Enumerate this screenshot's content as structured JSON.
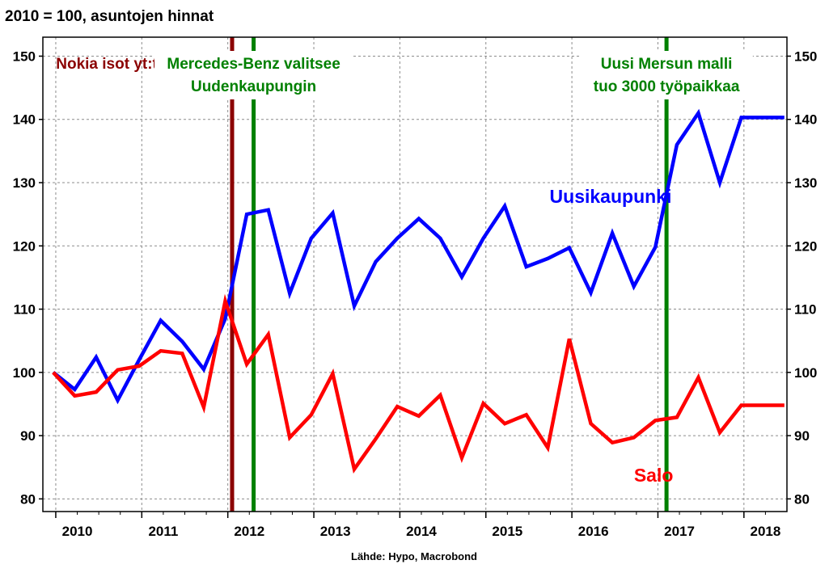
{
  "chart_data": {
    "type": "line",
    "title": "2010 = 100, asuntojen hinnat",
    "source": "Lähde: Hypo, Macrobond",
    "ylim": [
      78,
      153
    ],
    "yticks": [
      80,
      90,
      100,
      110,
      120,
      130,
      140,
      150
    ],
    "xlim": [
      2009.6,
      2018.25
    ],
    "xticks": [
      {
        "label": "2010",
        "x": 2010.0
      },
      {
        "label": "2011",
        "x": 2011.0
      },
      {
        "label": "2012",
        "x": 2012.0
      },
      {
        "label": "2013",
        "x": 2013.0
      },
      {
        "label": "2014",
        "x": 2014.0
      },
      {
        "label": "2015",
        "x": 2015.0
      },
      {
        "label": "2016",
        "x": 2016.0
      },
      {
        "label": "2017",
        "x": 2017.0
      },
      {
        "label": "2018",
        "x": 2018.0
      }
    ],
    "grid": true,
    "x": [
      2009.72,
      2009.97,
      2010.22,
      2010.47,
      2010.72,
      2010.97,
      2011.22,
      2011.47,
      2011.72,
      2011.97,
      2012.22,
      2012.47,
      2012.72,
      2012.97,
      2013.22,
      2013.47,
      2013.72,
      2013.97,
      2014.22,
      2014.47,
      2014.72,
      2014.97,
      2015.22,
      2015.47,
      2015.72,
      2015.97,
      2016.22,
      2016.47,
      2016.72,
      2016.97,
      2017.22,
      2017.47,
      2017.72,
      2017.97,
      2018.22
    ],
    "series": [
      {
        "name": "Uusikaupunki",
        "color": "#0000ff",
        "values": [
          100,
          97.3,
          102.4,
          95.6,
          102,
          108.2,
          104.9,
          100.5,
          108.5,
          125,
          125.7,
          112.5,
          121.2,
          125.2,
          110.5,
          117.5,
          121.2,
          124.3,
          121.2,
          115.1,
          121.2,
          126.3,
          116.7,
          118,
          119.7,
          112.6,
          122,
          113.6,
          119.8,
          136,
          141,
          130,
          140.3,
          140.3,
          140.3
        ],
        "label_x": 2016.2,
        "label_y": 126.8
      },
      {
        "name": "Salo",
        "color": "#ff0000",
        "values": [
          100,
          96.3,
          96.9,
          100.4,
          101,
          103.4,
          103,
          94.5,
          111.3,
          101.3,
          106,
          89.7,
          93.3,
          99.8,
          84.7,
          89.5,
          94.6,
          93.1,
          96.4,
          86.5,
          95.1,
          91.9,
          93.3,
          88.1,
          105.3,
          91.9,
          88.9,
          89.7,
          92.4,
          92.9,
          99.2,
          90.5,
          94.8,
          94.8,
          94.8
        ],
        "label_x": 2016.7,
        "label_y": 82.7
      }
    ],
    "annotations": [
      {
        "label": "Nokia isot yt:t Salossa",
        "lines": [
          "Nokia isot yt:t Salossa"
        ],
        "x": 2011.8,
        "color": "#8b0000",
        "text_color": "#8b0000",
        "anchor": "end"
      },
      {
        "label": "Mercedes-Benz valitsee Uudenkaupungin",
        "lines": [
          "Mercedes-Benz valitsee",
          "Uudenkaupungin"
        ],
        "x": 2012.05,
        "color": "#008000",
        "text_color": "#008000",
        "anchor": "middle"
      },
      {
        "label": "Uusi Mersun malli tuo 3000 työpaikkaa",
        "lines": [
          "Uusi Mersun malli",
          "tuo 3000 työpaikkaa"
        ],
        "x": 2016.85,
        "color": "#008000",
        "text_color": "#008000",
        "anchor": "middle"
      }
    ]
  }
}
